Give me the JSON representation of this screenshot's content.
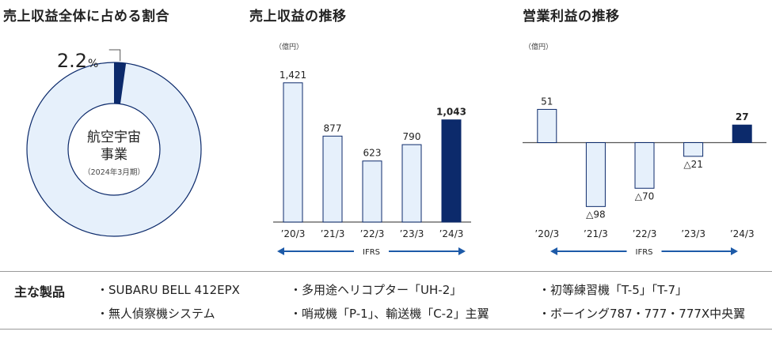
{
  "donut": {
    "title": "売上収益全体に占める割合",
    "percent_value": 2.2,
    "percent_text": "2.2",
    "percent_unit": "%",
    "center_line1": "航空宇宙",
    "center_line2": "事業",
    "center_note": "（2024年3月期）",
    "colors": {
      "segment": "#0c2a6b",
      "rest": "#e6f0fb",
      "outline": "#0c2a6b"
    }
  },
  "chart_data": [
    {
      "type": "bar",
      "title": "売上収益の推移",
      "ylabel": "（億円）",
      "categories": [
        "’20/3",
        "’21/3",
        "’22/3",
        "’23/3",
        "’24/3"
      ],
      "values": [
        1421,
        877,
        623,
        790,
        1043
      ],
      "value_labels": [
        "1,421",
        "877",
        "623",
        "790",
        "1,043"
      ],
      "highlight_index": 4,
      "ylim": [
        0,
        1500
      ],
      "ifrs_label": "IFRS",
      "grid": false
    },
    {
      "type": "bar",
      "title": "営業利益の推移",
      "ylabel": "（億円）",
      "categories": [
        "’20/3",
        "’21/3",
        "’22/3",
        "’23/3",
        "’24/3"
      ],
      "values": [
        51,
        -98,
        -70,
        -21,
        27
      ],
      "value_labels": [
        "51",
        "△98",
        "△70",
        "△21",
        "27"
      ],
      "highlight_index": 4,
      "ylim": [
        -100,
        60
      ],
      "ifrs_label": "IFRS",
      "grid": false
    }
  ],
  "colors": {
    "bar_fill": "#e6f0fb",
    "bar_stroke": "#0c2a6b",
    "highlight": "#0c2a6b",
    "arrow": "#1d5aa8",
    "axis": "#555555"
  },
  "products": {
    "label": "主な製品",
    "items": [
      "SUBARU BELL 412EPX",
      "多用途ヘリコプター「UH-2」",
      "初等練習機「T-5」「T-7」",
      "無人偵察機システム",
      "哨戒機「P-1」、輸送機「C-2」主翼",
      "ボーイング787・777・777X中央翼"
    ]
  }
}
